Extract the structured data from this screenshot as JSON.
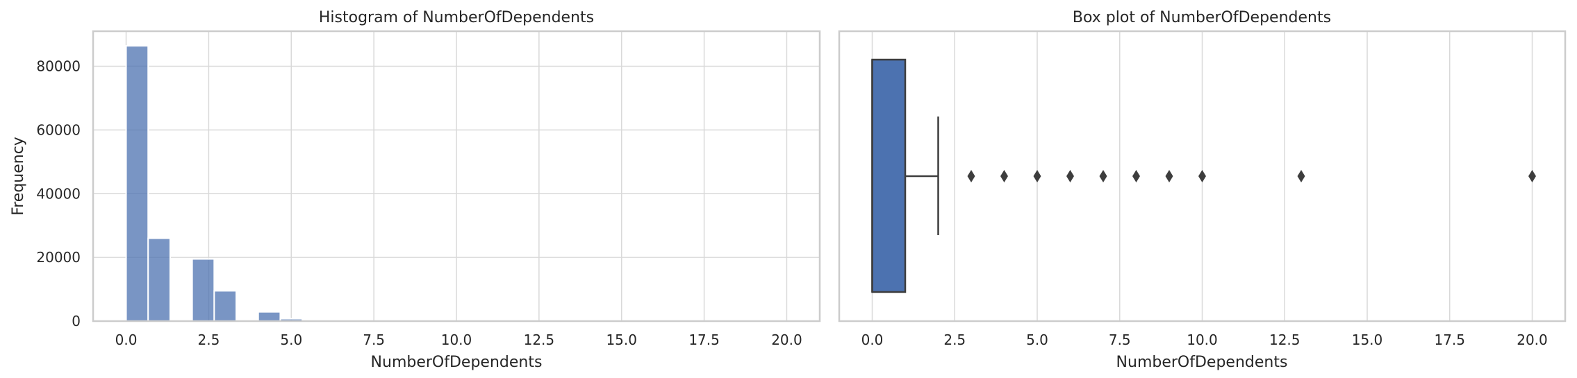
{
  "chart_data": [
    {
      "type": "bar",
      "title": "Histogram of NumberOfDependents",
      "xlabel": "NumberOfDependents",
      "ylabel": "Frequency",
      "xlim": [
        -1,
        21
      ],
      "ylim": [
        0,
        91000
      ],
      "xticks": [
        0.0,
        2.5,
        5.0,
        7.5,
        10.0,
        12.5,
        15.0,
        17.5,
        20.0
      ],
      "xtick_labels": [
        "0.0",
        "2.5",
        "5.0",
        "7.5",
        "10.0",
        "12.5",
        "15.0",
        "17.5",
        "20.0"
      ],
      "yticks": [
        0,
        20000,
        40000,
        60000,
        80000
      ],
      "ytick_labels": [
        "0",
        "20000",
        "40000",
        "60000",
        "80000"
      ],
      "grid": true,
      "bin_width": 0.6667,
      "bins_start": [
        0.0,
        0.667,
        2.0,
        2.667,
        4.0,
        4.667,
        6.0,
        6.667,
        8.0,
        8.667,
        10.0,
        12.667,
        19.333
      ],
      "values": [
        86400,
        26000,
        19500,
        9500,
        2900,
        750,
        160,
        50,
        25,
        10,
        5,
        2,
        1
      ],
      "color": "#4c72b0",
      "bar_opacity": 0.75
    },
    {
      "type": "box",
      "title": "Box plot of NumberOfDependents",
      "xlabel": "NumberOfDependents",
      "xlim": [
        -1,
        21
      ],
      "xticks": [
        0.0,
        2.5,
        5.0,
        7.5,
        10.0,
        12.5,
        15.0,
        17.5,
        20.0
      ],
      "xtick_labels": [
        "0.0",
        "2.5",
        "5.0",
        "7.5",
        "10.0",
        "12.5",
        "15.0",
        "17.5",
        "20.0"
      ],
      "grid": true,
      "box": {
        "min": 0,
        "q1": 0,
        "median": 0,
        "q3": 1,
        "whisker_high": 2
      },
      "outliers": [
        3,
        4,
        5,
        6,
        7,
        8,
        9,
        10,
        13,
        20
      ],
      "color": "#4c72b0",
      "line_color": "#3d3d3d"
    }
  ]
}
